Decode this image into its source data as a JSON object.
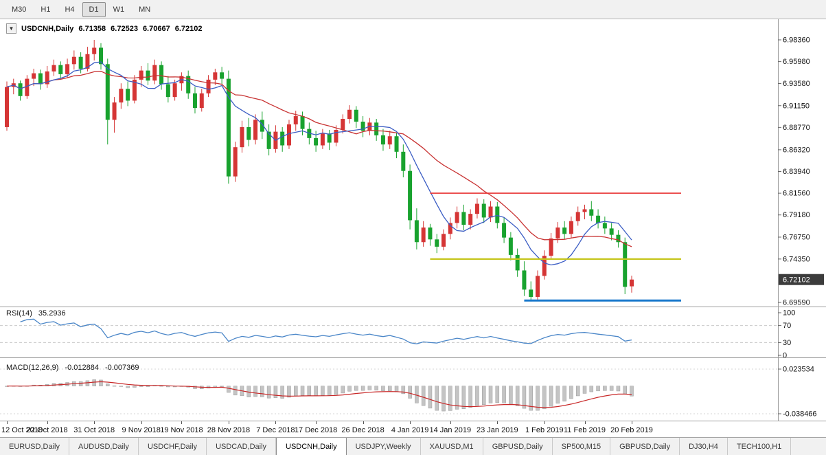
{
  "toolbar": {
    "timeframes": [
      {
        "label": "M30",
        "active": false
      },
      {
        "label": "H1",
        "active": false
      },
      {
        "label": "H4",
        "active": false
      },
      {
        "label": "D1",
        "active": true
      },
      {
        "label": "W1",
        "active": false
      },
      {
        "label": "MN",
        "active": false
      }
    ]
  },
  "chart": {
    "header": {
      "symbol": "USDCNH,Daily",
      "open": "6.71358",
      "high": "6.72523",
      "low": "6.70667",
      "close": "6.72102"
    },
    "price_axis_labels": [
      "6.98360",
      "6.95980",
      "6.93580",
      "6.91150",
      "6.88770",
      "6.86320",
      "6.83940",
      "6.81560",
      "6.79180",
      "6.76750",
      "6.74350",
      "6.69590"
    ],
    "current_price": "6.72102",
    "hlines": [
      {
        "name": "resistance-hline",
        "price": 6.8156,
        "color": "#e83030",
        "width": 1.6,
        "from_index": 63
      },
      {
        "name": "mid-support-hline",
        "price": 6.7435,
        "color": "#c6c61e",
        "width": 2.2,
        "from_index": 63
      },
      {
        "name": "lower-support-hline",
        "price": 6.698,
        "color": "#1878cc",
        "width": 3,
        "from_index": 77
      }
    ]
  },
  "rsi": {
    "label": "RSI(14)",
    "value": "35.2936",
    "period": 14,
    "color": "#4a86c8",
    "axis_labels": [
      "100",
      "70",
      "30",
      "0"
    ],
    "levels": [
      70,
      30
    ]
  },
  "macd": {
    "label": "MACD(12,26,9)",
    "main_value": "-0.012884",
    "signal_value": "-0.007369",
    "axis_top": "0.023534",
    "axis_bottom": "-0.038466",
    "fast": 12,
    "slow": 26,
    "signal": 9,
    "bar_color": "#c4c4c4",
    "signal_color": "#c82828"
  },
  "tabs": [
    {
      "label": "EURUSD,Daily",
      "active": false
    },
    {
      "label": "AUDUSD,Daily",
      "active": false
    },
    {
      "label": "USDCHF,Daily",
      "active": false
    },
    {
      "label": "USDCAD,Daily",
      "active": false
    },
    {
      "label": "USDCNH,Daily",
      "active": true
    },
    {
      "label": "USDJPY,Weekly",
      "active": false
    },
    {
      "label": "XAUUSD,M1",
      "active": false
    },
    {
      "label": "GBPUSD,Daily",
      "active": false
    },
    {
      "label": "SP500,M15",
      "active": false
    },
    {
      "label": "GBPUSD,Daily",
      "active": false
    },
    {
      "label": "DJ30,H4",
      "active": false
    },
    {
      "label": "TECH100,H1",
      "active": false
    }
  ],
  "chart_data": {
    "type": "candlestick",
    "symbol": "USDCNH",
    "timeframe": "Daily",
    "colors": {
      "up": "#d53535",
      "down": "#18a22e",
      "ma_fast": "#3b5dc4",
      "ma_slow": "#c83232"
    },
    "ma_fast_period": 8,
    "ma_slow_period": 20,
    "ylim": [
      6.6914,
      7.0044
    ],
    "x_axis": {
      "labels": [
        "12 Oct 2018",
        "22 Oct 2018",
        "31 Oct 2018",
        "9 Nov 2018",
        "19 Nov 2018",
        "28 Nov 2018",
        "7 Dec 2018",
        "17 Dec 2018",
        "26 Dec 2018",
        "4 Jan 2019",
        "14 Jan 2019",
        "23 Jan 2019",
        "1 Feb 2019",
        "11 Feb 2019",
        "20 Feb 2019"
      ],
      "indices": [
        0,
        6,
        13,
        20,
        26,
        33,
        40,
        46,
        53,
        60,
        66,
        73,
        80,
        86,
        93
      ]
    },
    "candles": [
      [
        6.888,
        6.938,
        6.884,
        6.932
      ],
      [
        6.932,
        6.941,
        6.924,
        6.936
      ],
      [
        6.936,
        6.939,
        6.917,
        6.922
      ],
      [
        6.922,
        6.945,
        6.919,
        6.941
      ],
      [
        6.941,
        6.952,
        6.933,
        6.947
      ],
      [
        6.947,
        6.951,
        6.929,
        6.935
      ],
      [
        6.935,
        6.955,
        6.931,
        6.949
      ],
      [
        6.949,
        6.962,
        6.944,
        6.956
      ],
      [
        6.956,
        6.96,
        6.941,
        6.946
      ],
      [
        6.946,
        6.963,
        6.942,
        6.957
      ],
      [
        6.957,
        6.972,
        6.951,
        6.965
      ],
      [
        6.965,
        6.97,
        6.947,
        6.952
      ],
      [
        6.952,
        6.976,
        6.949,
        6.968
      ],
      [
        6.968,
        6.9836,
        6.961,
        6.975
      ],
      [
        6.975,
        6.98,
        6.951,
        6.957
      ],
      [
        6.957,
        6.963,
        6.869,
        6.896
      ],
      [
        6.896,
        6.921,
        6.882,
        6.915
      ],
      [
        6.915,
        6.936,
        6.908,
        6.93
      ],
      [
        6.93,
        6.938,
        6.911,
        6.917
      ],
      [
        6.917,
        6.945,
        6.914,
        6.94
      ],
      [
        6.94,
        6.955,
        6.932,
        6.95
      ],
      [
        6.95,
        6.958,
        6.934,
        6.939
      ],
      [
        6.939,
        6.962,
        6.935,
        6.956
      ],
      [
        6.956,
        6.96,
        6.929,
        6.935
      ],
      [
        6.935,
        6.944,
        6.915,
        6.921
      ],
      [
        6.921,
        6.94,
        6.917,
        6.936
      ],
      [
        6.936,
        6.948,
        6.928,
        6.944
      ],
      [
        6.944,
        6.95,
        6.919,
        6.925
      ],
      [
        6.925,
        6.932,
        6.903,
        6.909
      ],
      [
        6.909,
        6.93,
        6.905,
        6.925
      ],
      [
        6.925,
        6.945,
        6.921,
        6.94
      ],
      [
        6.94,
        6.952,
        6.934,
        6.948
      ],
      [
        6.948,
        6.954,
        6.935,
        6.941
      ],
      [
        6.941,
        6.95,
        6.826,
        6.834
      ],
      [
        6.834,
        6.872,
        6.828,
        6.866
      ],
      [
        6.866,
        6.895,
        6.86,
        6.888
      ],
      [
        6.888,
        6.898,
        6.867,
        6.874
      ],
      [
        6.874,
        6.902,
        6.869,
        6.896
      ],
      [
        6.896,
        6.905,
        6.875,
        6.883
      ],
      [
        6.883,
        6.891,
        6.857,
        6.864
      ],
      [
        6.864,
        6.89,
        6.86,
        6.883
      ],
      [
        6.883,
        6.888,
        6.861,
        6.868
      ],
      [
        6.868,
        6.896,
        6.864,
        6.891
      ],
      [
        6.891,
        6.906,
        6.884,
        6.9
      ],
      [
        6.9,
        6.905,
        6.879,
        6.886
      ],
      [
        6.886,
        6.893,
        6.869,
        6.876
      ],
      [
        6.876,
        6.884,
        6.861,
        6.868
      ],
      [
        6.868,
        6.886,
        6.864,
        6.881
      ],
      [
        6.881,
        6.885,
        6.863,
        6.871
      ],
      [
        6.871,
        6.89,
        6.867,
        6.885
      ],
      [
        6.885,
        6.902,
        6.881,
        6.897
      ],
      [
        6.897,
        6.912,
        6.892,
        6.907
      ],
      [
        6.907,
        6.911,
        6.887,
        6.894
      ],
      [
        6.894,
        6.9,
        6.877,
        6.884
      ],
      [
        6.884,
        6.898,
        6.879,
        6.893
      ],
      [
        6.893,
        6.897,
        6.873,
        6.879
      ],
      [
        6.879,
        6.886,
        6.862,
        6.869
      ],
      [
        6.869,
        6.884,
        6.864,
        6.878
      ],
      [
        6.878,
        6.882,
        6.854,
        6.861
      ],
      [
        6.861,
        6.869,
        6.833,
        6.84
      ],
      [
        6.84,
        6.847,
        6.776,
        6.786
      ],
      [
        6.786,
        6.799,
        6.754,
        6.762
      ],
      [
        6.762,
        6.785,
        6.757,
        6.778
      ],
      [
        6.778,
        6.782,
        6.758,
        6.765
      ],
      [
        6.765,
        6.771,
        6.75,
        6.757
      ],
      [
        6.757,
        6.776,
        6.753,
        6.771
      ],
      [
        6.771,
        6.789,
        6.765,
        6.783
      ],
      [
        6.783,
        6.801,
        6.777,
        6.795
      ],
      [
        6.795,
        6.803,
        6.775,
        6.781
      ],
      [
        6.781,
        6.798,
        6.776,
        6.793
      ],
      [
        6.793,
        6.81,
        6.788,
        6.804
      ],
      [
        6.804,
        6.809,
        6.783,
        6.789
      ],
      [
        6.789,
        6.807,
        6.784,
        6.801
      ],
      [
        6.801,
        6.806,
        6.777,
        6.783
      ],
      [
        6.783,
        6.789,
        6.761,
        6.767
      ],
      [
        6.767,
        6.773,
        6.742,
        6.748
      ],
      [
        6.748,
        6.755,
        6.724,
        6.731
      ],
      [
        6.731,
        6.741,
        6.703,
        6.71
      ],
      [
        6.71,
        6.719,
        6.697,
        6.702
      ],
      [
        6.702,
        6.731,
        6.699,
        6.725
      ],
      [
        6.725,
        6.753,
        6.721,
        6.747
      ],
      [
        6.747,
        6.772,
        6.743,
        6.766
      ],
      [
        6.766,
        6.784,
        6.761,
        6.778
      ],
      [
        6.778,
        6.785,
        6.765,
        6.771
      ],
      [
        6.771,
        6.79,
        6.767,
        6.785
      ],
      [
        6.785,
        6.801,
        6.78,
        6.795
      ],
      [
        6.795,
        6.803,
        6.787,
        6.798
      ],
      [
        6.798,
        6.807,
        6.785,
        6.791
      ],
      [
        6.791,
        6.798,
        6.777,
        6.783
      ],
      [
        6.783,
        6.79,
        6.771,
        6.777
      ],
      [
        6.777,
        6.783,
        6.764,
        6.77
      ],
      [
        6.77,
        6.775,
        6.756,
        6.762
      ],
      [
        6.762,
        6.767,
        6.705,
        6.713
      ],
      [
        6.71358,
        6.72523,
        6.70667,
        6.72102
      ]
    ]
  }
}
